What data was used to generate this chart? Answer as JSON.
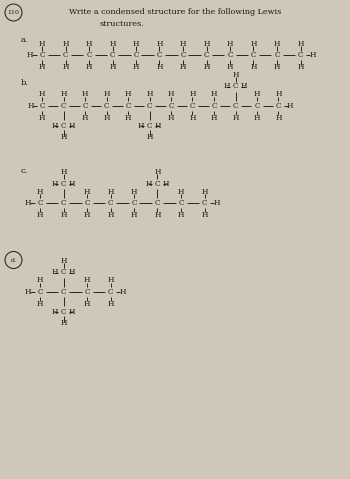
{
  "bg_color": "#cfc8b8",
  "text_color": "#1a1a1a",
  "figw": 3.5,
  "figh": 4.79,
  "dpi": 100,
  "xlim": [
    0,
    3.5
  ],
  "ylim": [
    0,
    4.79
  ]
}
